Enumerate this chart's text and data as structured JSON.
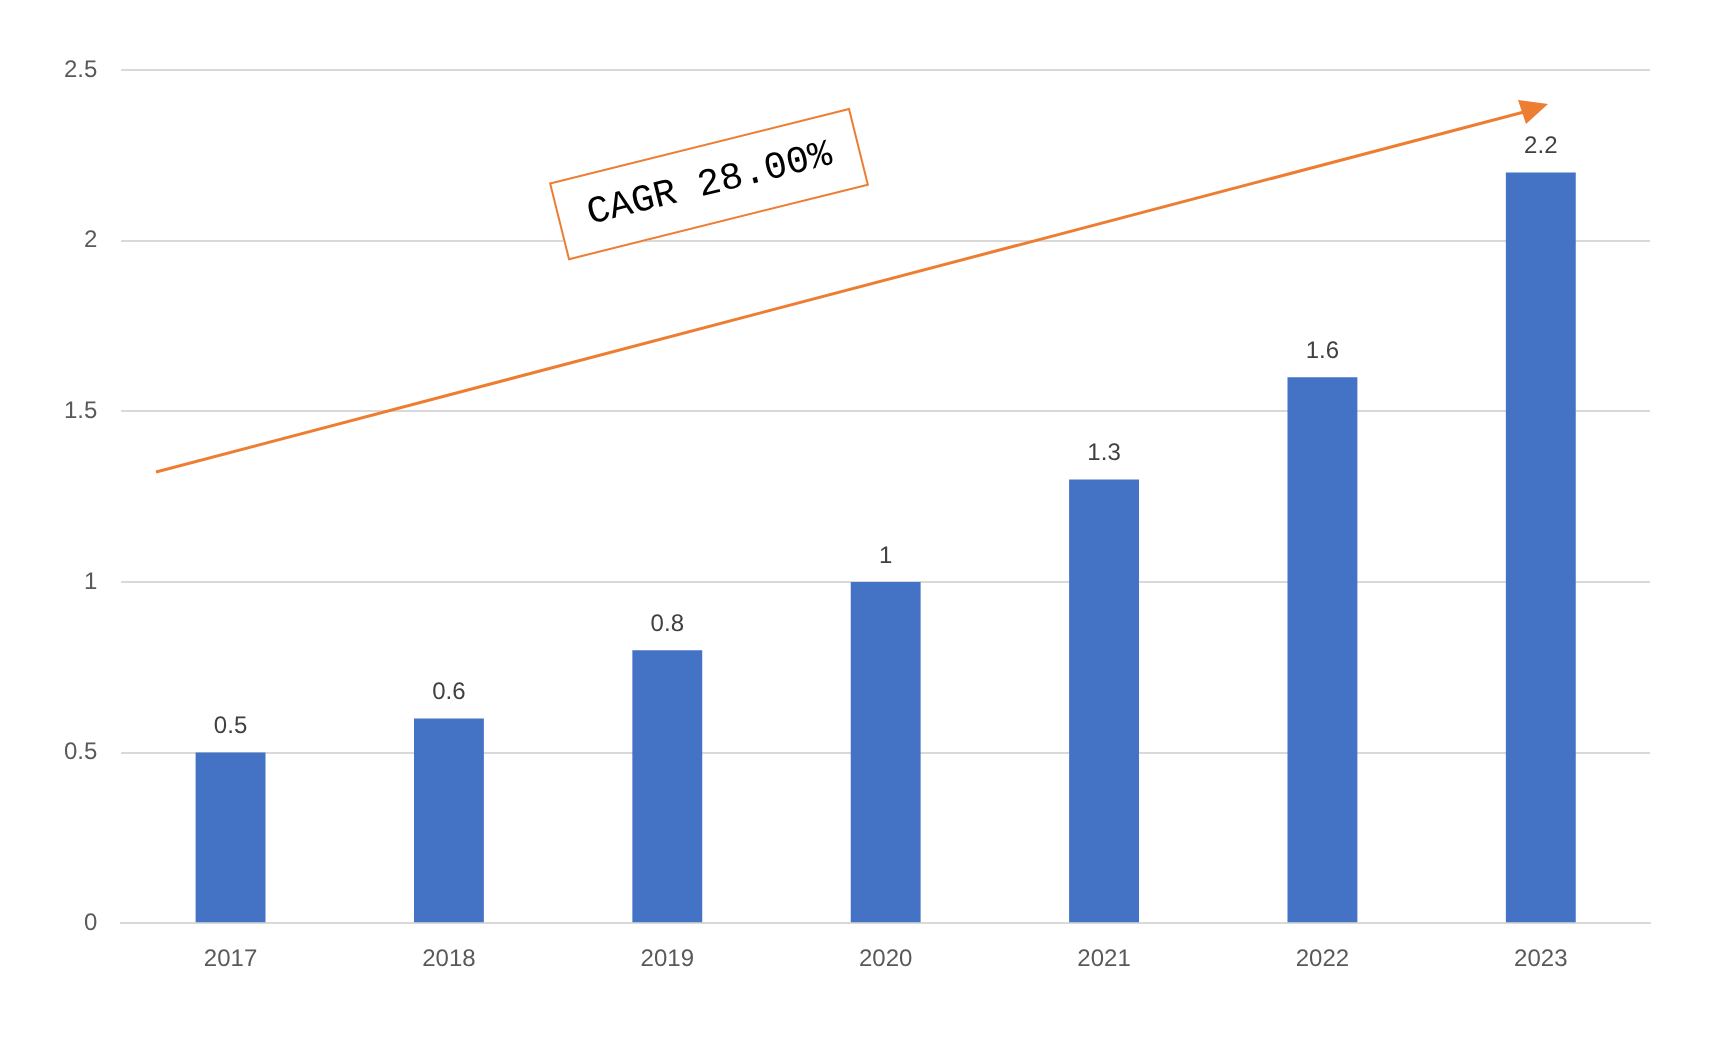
{
  "chart_data": {
    "type": "bar",
    "categories": [
      "2017",
      "2018",
      "2019",
      "2020",
      "2021",
      "2022",
      "2023"
    ],
    "values": [
      0.5,
      0.6,
      0.8,
      1,
      1.3,
      1.6,
      2.2
    ],
    "color": "#4472c4",
    "ylim": [
      0,
      2.5
    ],
    "yticks": [
      0,
      0.5,
      1,
      1.5,
      2,
      2.5
    ],
    "grid": "y",
    "legend": false,
    "data_labels": true,
    "annotations": [
      "CAGR 28.00%"
    ]
  }
}
